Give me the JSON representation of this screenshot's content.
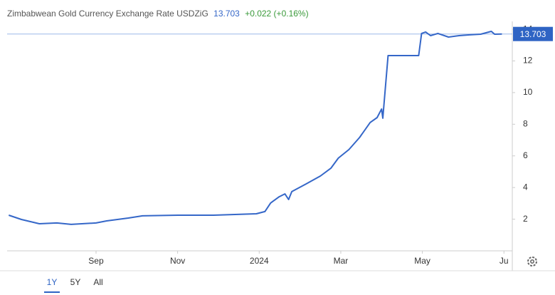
{
  "chart_data": {
    "type": "line",
    "title": "Zimbabwean Gold Currency Exchange Rate USDZiG",
    "last_value": 13.703,
    "change": "+0.022 (+0.16%)",
    "color": "#3567c8",
    "x": [
      -0.14,
      0.17,
      0.61,
      1.04,
      1.39,
      2.0,
      2.26,
      2.79,
      3.14,
      4.01,
      4.88,
      5.93,
      6.14,
      6.28,
      6.49,
      6.63,
      6.72,
      6.8,
      7.15,
      7.5,
      7.76,
      7.94,
      8.2,
      8.46,
      8.72,
      8.89,
      9.0,
      9.03,
      9.16,
      9.91,
      9.98,
      10.08,
      10.2,
      10.38,
      10.64,
      10.9,
      11.16,
      11.43,
      11.69,
      11.77,
      11.95
    ],
    "values": [
      2.25,
      1.98,
      1.71,
      1.76,
      1.67,
      1.76,
      1.89,
      2.07,
      2.21,
      2.25,
      2.25,
      2.34,
      2.48,
      3.02,
      3.42,
      3.6,
      3.24,
      3.74,
      4.23,
      4.73,
      5.23,
      5.86,
      6.4,
      7.16,
      8.11,
      8.42,
      8.96,
      8.38,
      12.34,
      12.34,
      13.74,
      13.83,
      13.6,
      13.74,
      13.51,
      13.6,
      13.65,
      13.69,
      13.87,
      13.69,
      13.703
    ],
    "xlim": [
      -0.18,
      12.17
    ],
    "xticks": [
      {
        "value": 2,
        "label": "Sep"
      },
      {
        "value": 4,
        "label": "Nov"
      },
      {
        "value": 6,
        "label": "2024"
      },
      {
        "value": 8,
        "label": "Mar"
      },
      {
        "value": 10,
        "label": "May"
      },
      {
        "value": 12,
        "label": "Ju"
      }
    ],
    "ylim": [
      0,
      14.5
    ],
    "yticks": [
      2,
      4,
      6,
      8,
      10,
      12,
      14
    ],
    "grid": false,
    "ranges": [
      "1Y",
      "5Y",
      "All"
    ],
    "active_range": 0
  }
}
